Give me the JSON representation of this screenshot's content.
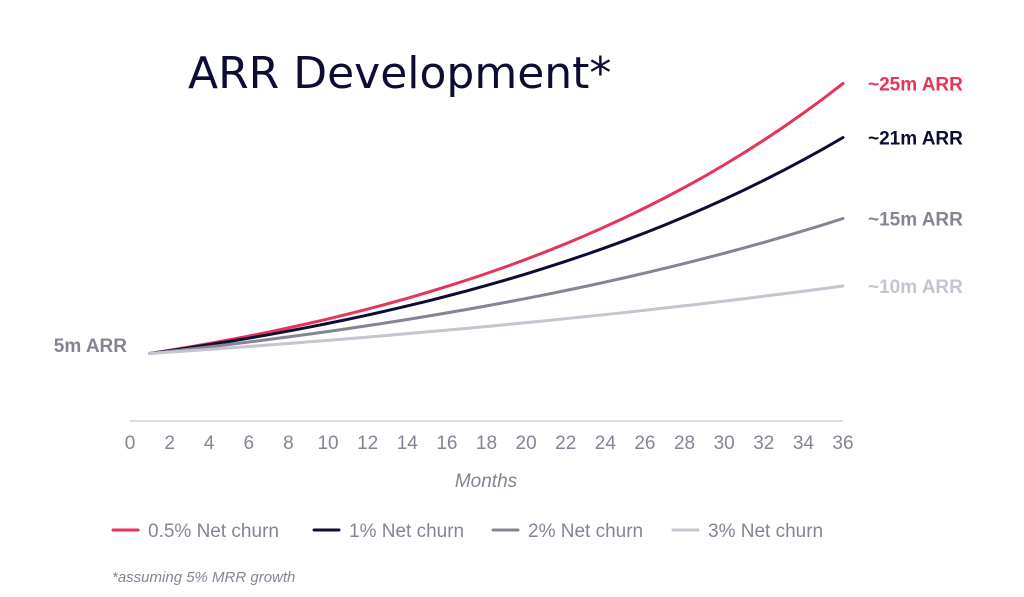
{
  "chart_data": {
    "type": "line",
    "title": "ARR Development*",
    "xlabel": "Months",
    "ylabel": "",
    "x_ticks": [
      0,
      2,
      4,
      6,
      8,
      10,
      12,
      14,
      16,
      18,
      20,
      22,
      24,
      26,
      28,
      30,
      32,
      34,
      36
    ],
    "xlim": [
      0,
      36
    ],
    "ylim": [
      0,
      28
    ],
    "start_label": "5m ARR",
    "start_value": 5,
    "start_month": 1,
    "series": [
      {
        "name": "0.5% Net churn",
        "color": "#e8345a",
        "end_label": "~25m ARR",
        "end_value": 25
      },
      {
        "name": "1% Net churn",
        "color": "#0d0c35",
        "end_label": "~21m ARR",
        "end_value": 21
      },
      {
        "name": "2% Net churn",
        "color": "#858494",
        "end_label": "~15m ARR",
        "end_value": 15
      },
      {
        "name": "3% Net churn",
        "color": "#c5c4cf",
        "end_label": "~10m ARR",
        "end_value": 10
      }
    ],
    "legend_position": "bottom",
    "footnote": "*assuming 5% MRR growth"
  }
}
